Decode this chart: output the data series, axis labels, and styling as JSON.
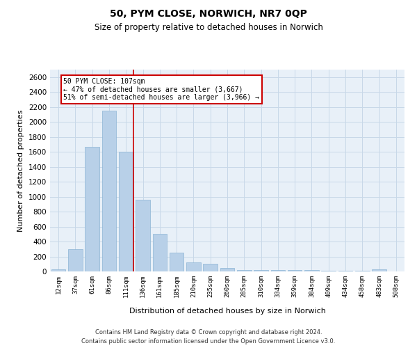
{
  "title": "50, PYM CLOSE, NORWICH, NR7 0QP",
  "subtitle": "Size of property relative to detached houses in Norwich",
  "xlabel": "Distribution of detached houses by size in Norwich",
  "ylabel": "Number of detached properties",
  "bar_color": "#b8d0e8",
  "bar_edge_color": "#8cb4d4",
  "categories": [
    "12sqm",
    "37sqm",
    "61sqm",
    "86sqm",
    "111sqm",
    "136sqm",
    "161sqm",
    "185sqm",
    "210sqm",
    "235sqm",
    "260sqm",
    "285sqm",
    "310sqm",
    "334sqm",
    "359sqm",
    "384sqm",
    "409sqm",
    "434sqm",
    "458sqm",
    "483sqm",
    "508sqm"
  ],
  "values": [
    25,
    300,
    1670,
    2150,
    1600,
    960,
    500,
    250,
    120,
    100,
    45,
    20,
    15,
    15,
    15,
    20,
    10,
    10,
    10,
    25,
    0
  ],
  "ylim": [
    0,
    2700
  ],
  "yticks": [
    0,
    200,
    400,
    600,
    800,
    1000,
    1200,
    1400,
    1600,
    1800,
    2000,
    2200,
    2400,
    2600
  ],
  "red_line_index": 4,
  "annotation_text": "50 PYM CLOSE: 107sqm\n← 47% of detached houses are smaller (3,667)\n51% of semi-detached houses are larger (3,966) →",
  "annotation_box_color": "#ffffff",
  "annotation_box_edge_color": "#cc0000",
  "footer_line1": "Contains HM Land Registry data © Crown copyright and database right 2024.",
  "footer_line2": "Contains public sector information licensed under the Open Government Licence v3.0.",
  "grid_color": "#c8d8e8",
  "background_color": "#e8f0f8"
}
